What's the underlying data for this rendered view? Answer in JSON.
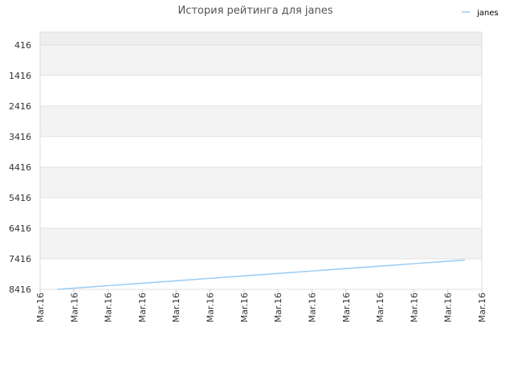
{
  "chart_data": {
    "type": "line",
    "title": "История рейтинга для janes",
    "x": [
      0.5,
      1,
      1.5,
      2,
      2.5,
      3,
      3.5,
      4,
      4.5,
      5,
      5.5,
      6,
      6.5,
      7,
      7.5,
      8,
      8.5,
      9,
      9.5,
      10,
      10.5,
      11,
      11.5,
      12,
      12.5
    ],
    "series": [
      {
        "name": "janes",
        "color": "#99ccf5",
        "values": [
          8416,
          8376,
          8336,
          8296,
          8256,
          8216,
          8176,
          8136,
          8096,
          8056,
          8016,
          7976,
          7936,
          7896,
          7856,
          7816,
          7776,
          7736,
          7696,
          7656,
          7616,
          7576,
          7536,
          7496,
          7456
        ]
      }
    ],
    "xlim": [
      0,
      13
    ],
    "xticks": [
      {
        "value": 0,
        "label": "Mar.16"
      },
      {
        "value": 1,
        "label": "Mar.16"
      },
      {
        "value": 2,
        "label": "Mar.16"
      },
      {
        "value": 3,
        "label": "Mar.16"
      },
      {
        "value": 4,
        "label": "Mar.16"
      },
      {
        "value": 5,
        "label": "Mar.16"
      },
      {
        "value": 6,
        "label": "Mar.16"
      },
      {
        "value": 7,
        "label": "Mar.16"
      },
      {
        "value": 8,
        "label": "Mar.16"
      },
      {
        "value": 9,
        "label": "Mar.16"
      },
      {
        "value": 10,
        "label": "Mar.16"
      },
      {
        "value": 11,
        "label": "Mar.16"
      },
      {
        "value": 12,
        "label": "Mar.16"
      },
      {
        "value": 13,
        "label": "Mar.16"
      }
    ],
    "ylim": [
      8416,
      0
    ],
    "yticks": [
      416,
      1416,
      2416,
      3416,
      4416,
      5416,
      6416,
      7416,
      8416
    ],
    "grid": true,
    "legend": "top-right"
  }
}
